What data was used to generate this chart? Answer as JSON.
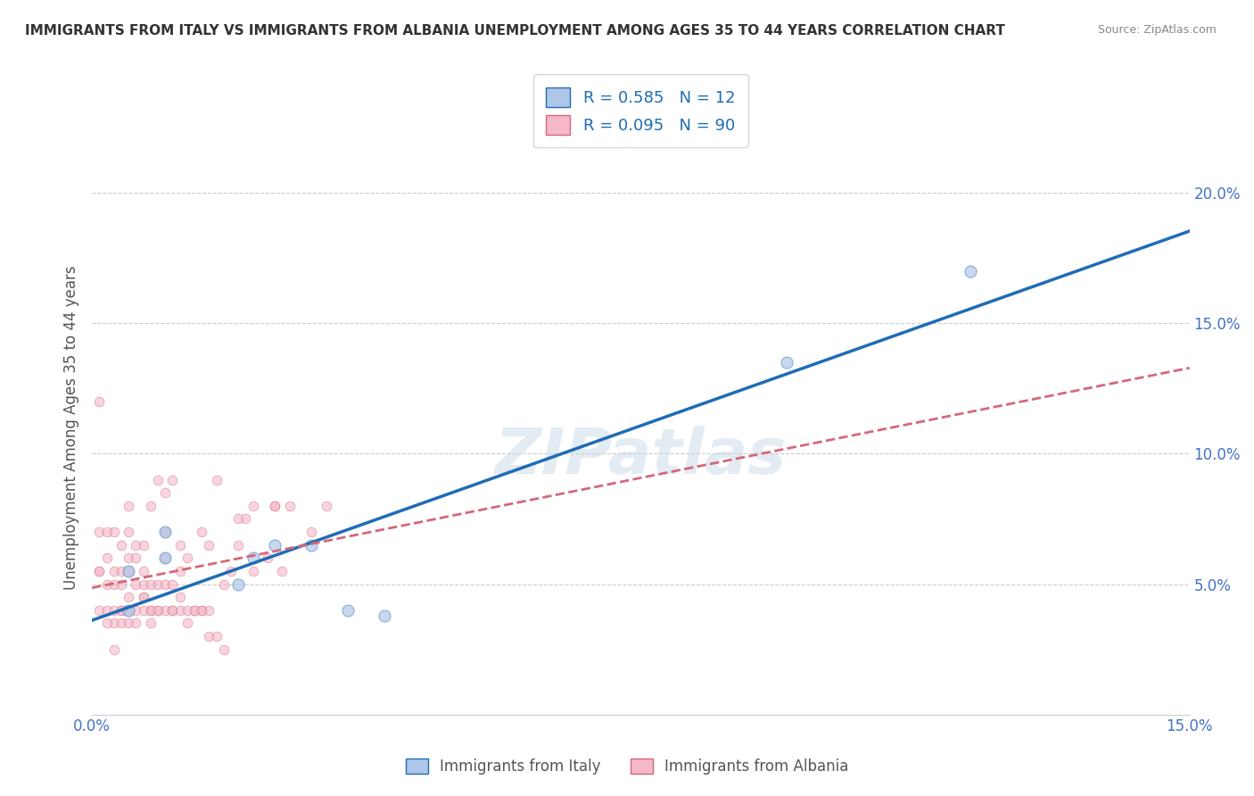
{
  "title": "IMMIGRANTS FROM ITALY VS IMMIGRANTS FROM ALBANIA UNEMPLOYMENT AMONG AGES 35 TO 44 YEARS CORRELATION CHART",
  "source": "Source: ZipAtlas.com",
  "xlabel_bottom": "",
  "ylabel": "Unemployment Among Ages 35 to 44 years",
  "xlabel_legend1": "Immigrants from Italy",
  "xlabel_legend2": "Immigrants from Albania",
  "xlim": [
    0.0,
    0.15
  ],
  "ylim": [
    0.0,
    0.22
  ],
  "yticks": [
    0.05,
    0.1,
    0.15,
    0.2
  ],
  "ytick_labels": [
    "5.0%",
    "10.0%",
    "15.0%",
    "20.0%"
  ],
  "xticks": [
    0.0,
    0.15
  ],
  "xtick_labels": [
    "0.0%",
    "15.0%"
  ],
  "legend_R1": "R = 0.585",
  "legend_N1": "N = 12",
  "legend_R2": "R = 0.095",
  "legend_N2": "N = 90",
  "color_italy": "#aec6e8",
  "color_albania": "#f4b8c8",
  "color_italy_line": "#1f6cb5",
  "color_albania_line": "#d4687a",
  "watermark": "ZIPatlas",
  "italy_x": [
    0.005,
    0.005,
    0.01,
    0.01,
    0.02,
    0.022,
    0.025,
    0.03,
    0.035,
    0.04,
    0.095,
    0.12
  ],
  "italy_y": [
    0.04,
    0.055,
    0.06,
    0.07,
    0.05,
    0.06,
    0.065,
    0.065,
    0.04,
    0.038,
    0.135,
    0.17
  ],
  "albania_x": [
    0.001,
    0.001,
    0.001,
    0.002,
    0.002,
    0.002,
    0.002,
    0.003,
    0.003,
    0.003,
    0.003,
    0.003,
    0.004,
    0.004,
    0.004,
    0.004,
    0.004,
    0.005,
    0.005,
    0.005,
    0.005,
    0.005,
    0.005,
    0.006,
    0.006,
    0.006,
    0.006,
    0.007,
    0.007,
    0.007,
    0.007,
    0.007,
    0.008,
    0.008,
    0.008,
    0.008,
    0.009,
    0.009,
    0.009,
    0.01,
    0.01,
    0.01,
    0.01,
    0.011,
    0.011,
    0.011,
    0.012,
    0.012,
    0.012,
    0.013,
    0.013,
    0.014,
    0.015,
    0.015,
    0.016,
    0.016,
    0.017,
    0.018,
    0.019,
    0.02,
    0.021,
    0.022,
    0.024,
    0.025,
    0.026,
    0.027,
    0.03,
    0.032,
    0.001,
    0.001,
    0.002,
    0.003,
    0.004,
    0.005,
    0.006,
    0.007,
    0.008,
    0.009,
    0.01,
    0.011,
    0.012,
    0.013,
    0.014,
    0.015,
    0.016,
    0.017,
    0.018,
    0.02,
    0.022,
    0.025
  ],
  "albania_y": [
    0.04,
    0.055,
    0.07,
    0.04,
    0.05,
    0.06,
    0.07,
    0.035,
    0.04,
    0.05,
    0.055,
    0.07,
    0.035,
    0.04,
    0.05,
    0.055,
    0.065,
    0.035,
    0.04,
    0.045,
    0.055,
    0.06,
    0.07,
    0.035,
    0.04,
    0.05,
    0.06,
    0.04,
    0.045,
    0.05,
    0.055,
    0.065,
    0.035,
    0.04,
    0.05,
    0.08,
    0.04,
    0.05,
    0.09,
    0.04,
    0.05,
    0.06,
    0.085,
    0.04,
    0.05,
    0.09,
    0.04,
    0.055,
    0.065,
    0.04,
    0.06,
    0.04,
    0.04,
    0.07,
    0.04,
    0.065,
    0.09,
    0.05,
    0.055,
    0.065,
    0.075,
    0.055,
    0.06,
    0.08,
    0.055,
    0.08,
    0.07,
    0.08,
    0.12,
    0.055,
    0.035,
    0.025,
    0.04,
    0.08,
    0.065,
    0.045,
    0.04,
    0.04,
    0.07,
    0.04,
    0.045,
    0.035,
    0.04,
    0.04,
    0.03,
    0.03,
    0.025,
    0.075,
    0.08,
    0.08
  ],
  "bg_color": "#ffffff",
  "grid_color": "#cccccc",
  "title_color": "#333333",
  "axis_label_color": "#555555",
  "tick_label_color": "#4472c4",
  "dot_size": 60,
  "dot_alpha": 0.7
}
